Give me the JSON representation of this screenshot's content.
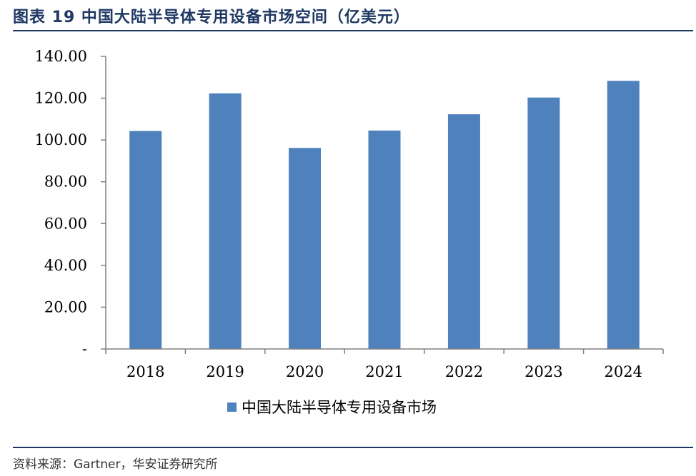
{
  "figure": {
    "title": "图表 19 中国大陆半导体专用设备市场空间（亿美元）",
    "source": "资料来源：Gartner，华安证券研究所"
  },
  "chart_data": {
    "type": "bar",
    "categories": [
      "2018",
      "2019",
      "2020",
      "2021",
      "2022",
      "2023",
      "2024"
    ],
    "series": [
      {
        "name": "中国大陆半导体专用设备市场",
        "values": [
          104.3,
          122.3,
          96.2,
          104.5,
          112.3,
          120.3,
          128.3
        ]
      }
    ],
    "ylim": [
      0,
      140
    ],
    "yticks": [
      0,
      20,
      40,
      60,
      80,
      100,
      120,
      140
    ],
    "ytick_labels": [
      "-",
      "20.00",
      "40.00",
      "60.00",
      "80.00",
      "100.00",
      "120.00",
      "140.00"
    ],
    "grid": false,
    "legend_position": "bottom",
    "colors": {
      "bar": "#4f81bd",
      "axis": "#808080",
      "rule": "#1f3864"
    }
  }
}
